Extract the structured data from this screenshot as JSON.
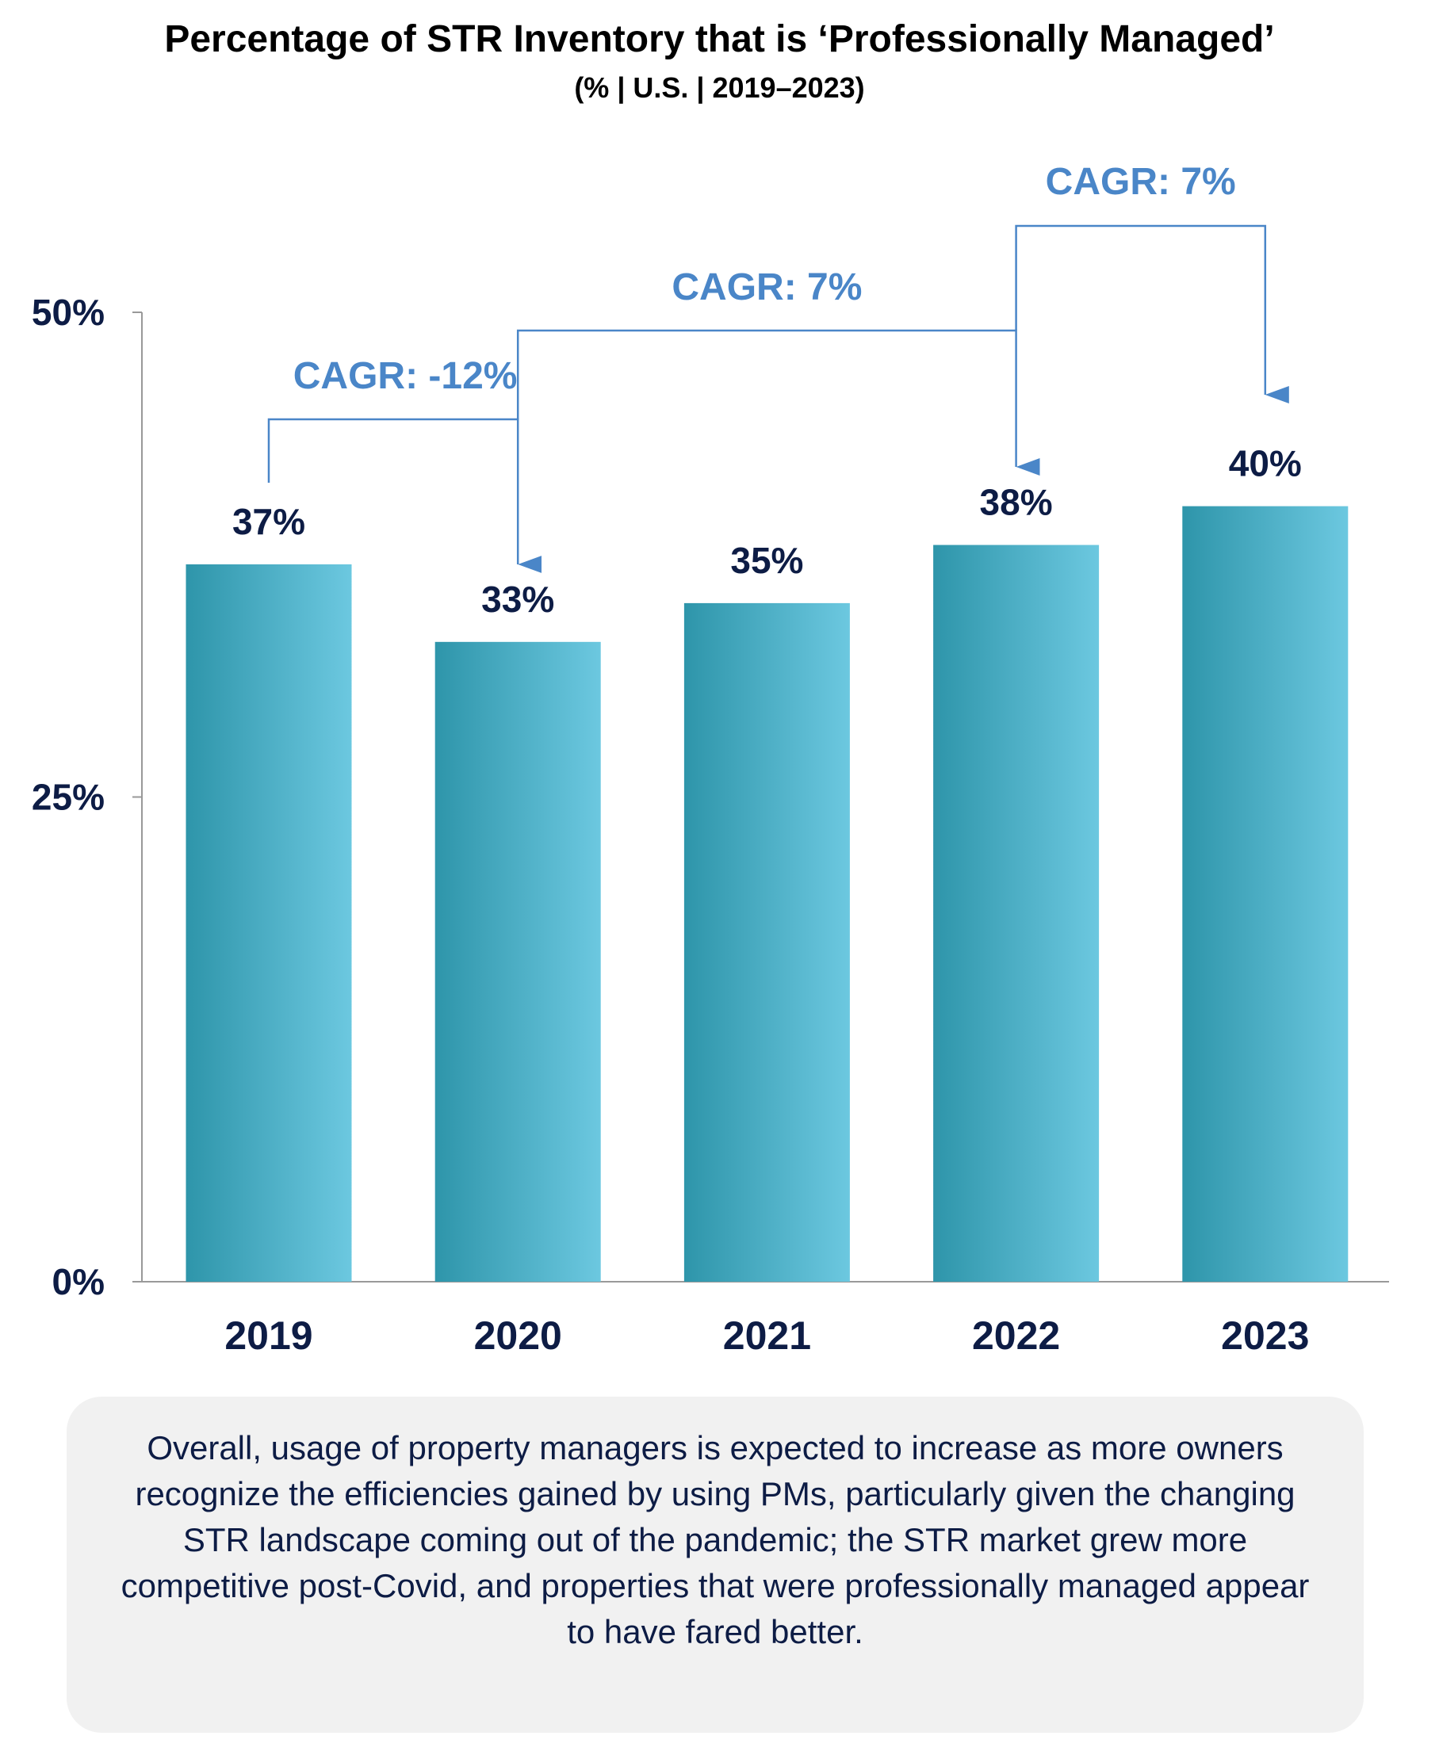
{
  "chart_data": {
    "type": "bar",
    "title": "Percentage of STR Inventory that is ‘Professionally Managed’",
    "subtitle": "(% | U.S. | 2019–2023)",
    "categories": [
      "2019",
      "2020",
      "2021",
      "2022",
      "2023"
    ],
    "values": [
      37,
      33,
      35,
      38,
      40
    ],
    "data_labels": [
      "37%",
      "33%",
      "35%",
      "38%",
      "40%"
    ],
    "ylim": [
      0,
      50
    ],
    "yticks": [
      {
        "value": 0,
        "label": "0%"
      },
      {
        "value": 25,
        "label": "25%"
      },
      {
        "value": 50,
        "label": "50%"
      }
    ],
    "grid": false,
    "legend": "none",
    "annotations": [
      {
        "text": "CAGR: -12%",
        "from": "2019",
        "to": "2020"
      },
      {
        "text": "CAGR: 7%",
        "from": "2020",
        "to": "2022"
      },
      {
        "text": "CAGR: 7%",
        "from": "2022",
        "to": "2023"
      }
    ],
    "colors": {
      "bar_start": "#2e95aa",
      "bar_end": "#6cc8e0",
      "label": "#0d1c45",
      "annotation": "#4a86c8",
      "axis": "#999999"
    }
  },
  "note": "Overall, usage of property managers is expected to increase as more owners recognize the efficiencies gained by using PMs, particularly given the changing STR landscape coming out of the pandemic; the STR market grew more competitive post-Covid, and properties that were professionally managed appear to have fared better."
}
